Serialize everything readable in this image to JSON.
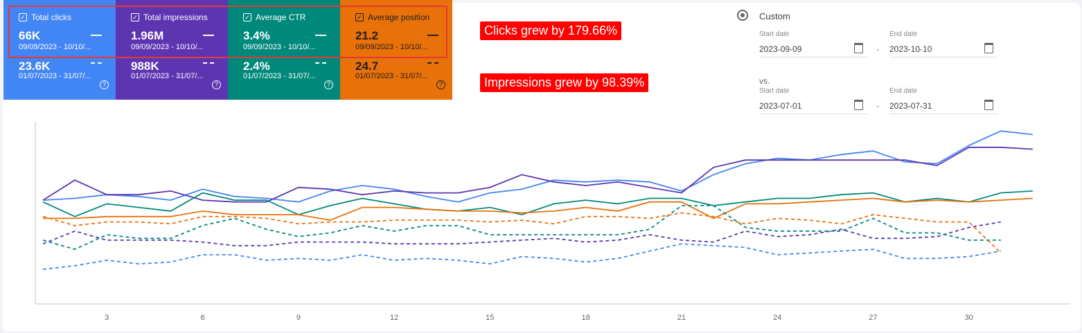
{
  "metrics": [
    {
      "label": "Total clicks",
      "value": "66K",
      "dates": "09/09/2023 - 10/10/...",
      "compare_value": "23.6K",
      "compare_dates": "01/07/2023 - 31/07/...",
      "bg": "#4285f4",
      "text_color": "#ffffff"
    },
    {
      "label": "Total impressions",
      "value": "1.96M",
      "dates": "09/09/2023 - 10/10/...",
      "compare_value": "988K",
      "compare_dates": "01/07/2023 - 31/07/...",
      "bg": "#5e35b1",
      "text_color": "#ffffff"
    },
    {
      "label": "Average CTR",
      "value": "3.4%",
      "dates": "09/09/2023 - 10/10/...",
      "compare_value": "2.4%",
      "compare_dates": "01/07/2023 - 31/07/...",
      "bg": "#00897b",
      "text_color": "#ffffff"
    },
    {
      "label": "Average position",
      "value": "21.2",
      "dates": "09/09/2023 - 10/10/...",
      "compare_value": "24.7",
      "compare_dates": "01/07/2023 - 31/07/...",
      "bg": "#e8710a",
      "text_color": "#1f1f1f"
    }
  ],
  "annotations": {
    "clicks": "Clicks grew by 179.66%",
    "impressions": "Impressions grew by 98.39%"
  },
  "date_range": {
    "option_label": "Custom",
    "start_label": "Start date",
    "end_label": "End date",
    "start_value": "2023-09-09",
    "end_value": "2023-10-10",
    "vs_label": "vs.",
    "compare_start_label": "Start date",
    "compare_end_label": "End date",
    "compare_start_value": "2023-07-01",
    "compare_end_value": "2023-07-31",
    "separator": "-"
  },
  "chart_data": {
    "type": "line",
    "x_ticks": [
      3,
      6,
      9,
      12,
      15,
      18,
      21,
      24,
      27,
      30
    ],
    "x_range": [
      1,
      33
    ],
    "y_range": [
      0,
      100
    ],
    "y_axis_note": "each series normalized to its own hidden axis; values are relative heights (0-100)",
    "series": [
      {
        "key": "clicks_current",
        "color": "#4285f4",
        "dashed": false,
        "x": [
          1,
          2,
          3,
          4,
          5,
          6,
          7,
          8,
          9,
          10,
          11,
          12,
          13,
          14,
          15,
          16,
          17,
          18,
          19,
          20,
          21,
          22,
          23,
          24,
          25,
          26,
          27,
          28,
          29,
          30,
          31,
          32
        ],
        "values": [
          57,
          58,
          60,
          59,
          57,
          63,
          59,
          58,
          56,
          62,
          65,
          63,
          59,
          56,
          61,
          63,
          68,
          67,
          68,
          67,
          62,
          71,
          77,
          80,
          79,
          82,
          84,
          78,
          77,
          87,
          95,
          93
        ]
      },
      {
        "key": "impressions_current",
        "color": "#5e35b1",
        "dashed": false,
        "x": [
          1,
          2,
          3,
          4,
          5,
          6,
          7,
          8,
          9,
          10,
          11,
          12,
          13,
          14,
          15,
          16,
          17,
          18,
          19,
          20,
          21,
          22,
          23,
          24,
          25,
          26,
          27,
          28,
          29,
          30,
          31,
          32
        ],
        "values": [
          57,
          68,
          60,
          60,
          62,
          57,
          56,
          56,
          64,
          63,
          60,
          62,
          61,
          61,
          64,
          71,
          67,
          65,
          67,
          64,
          61,
          75,
          79,
          79,
          79,
          79,
          79,
          79,
          76,
          86,
          86,
          85
        ]
      },
      {
        "key": "ctr_current",
        "color": "#00897b",
        "dashed": false,
        "x": [
          1,
          2,
          3,
          4,
          5,
          6,
          7,
          8,
          9,
          10,
          11,
          12,
          13,
          14,
          15,
          16,
          17,
          18,
          19,
          20,
          21,
          22,
          23,
          24,
          25,
          26,
          27,
          28,
          29,
          30,
          31,
          32
        ],
        "values": [
          56,
          48,
          55,
          53,
          51,
          61,
          57,
          57,
          49,
          54,
          58,
          55,
          52,
          51,
          53,
          49,
          55,
          57,
          55,
          58,
          58,
          54,
          56,
          58,
          58,
          60,
          61,
          56,
          58,
          56,
          61,
          62
        ]
      },
      {
        "key": "position_current",
        "color": "#e8710a",
        "dashed": false,
        "x": [
          1,
          2,
          3,
          4,
          5,
          6,
          7,
          8,
          9,
          10,
          11,
          12,
          13,
          14,
          15,
          16,
          17,
          18,
          19,
          20,
          21,
          22,
          23,
          24,
          25,
          26,
          27,
          28,
          29,
          30,
          31,
          32
        ],
        "values": [
          47,
          47,
          48,
          48,
          48,
          51,
          49,
          49,
          49,
          46,
          53,
          53,
          52,
          51,
          51,
          50,
          51,
          53,
          51,
          56,
          56,
          47,
          55,
          55,
          56,
          57,
          58,
          56,
          57,
          56,
          57,
          58
        ]
      },
      {
        "key": "clicks_compare",
        "color": "#4285f4",
        "dashed": true,
        "x": [
          1,
          2,
          3,
          4,
          5,
          6,
          7,
          8,
          9,
          10,
          11,
          12,
          13,
          14,
          15,
          16,
          17,
          18,
          19,
          20,
          21,
          22,
          23,
          24,
          25,
          26,
          27,
          28,
          29,
          30,
          31
        ],
        "values": [
          19,
          21,
          24,
          22,
          23,
          27,
          27,
          24,
          25,
          24,
          27,
          24,
          25,
          24,
          22,
          26,
          25,
          23,
          25,
          29,
          33,
          32,
          31,
          27,
          28,
          29,
          30,
          25,
          25,
          26,
          29
        ]
      },
      {
        "key": "impressions_compare",
        "color": "#5e35b1",
        "dashed": true,
        "x": [
          1,
          2,
          3,
          4,
          5,
          6,
          7,
          8,
          9,
          10,
          11,
          12,
          13,
          14,
          15,
          16,
          17,
          18,
          19,
          20,
          21,
          22,
          23,
          24,
          25,
          26,
          27,
          28,
          29,
          30,
          31
        ],
        "values": [
          33,
          40,
          35,
          35,
          35,
          34,
          32,
          32,
          34,
          34,
          34,
          33,
          33,
          33,
          34,
          35,
          36,
          34,
          35,
          38,
          35,
          34,
          40,
          37,
          38,
          41,
          36,
          36,
          37,
          42,
          45
        ]
      },
      {
        "key": "ctr_compare",
        "color": "#00897b",
        "dashed": true,
        "x": [
          1,
          2,
          3,
          4,
          5,
          6,
          7,
          8,
          9,
          10,
          11,
          12,
          13,
          14,
          15,
          16,
          17,
          18,
          19,
          20,
          21,
          22,
          23,
          24,
          25,
          26,
          27,
          28,
          29,
          30,
          31
        ],
        "values": [
          35,
          30,
          38,
          36,
          36,
          43,
          47,
          41,
          37,
          39,
          43,
          40,
          43,
          43,
          38,
          38,
          38,
          38,
          38,
          41,
          54,
          54,
          42,
          40,
          40,
          40,
          47,
          39,
          39,
          35,
          35
        ]
      },
      {
        "key": "position_compare",
        "color": "#e8710a",
        "dashed": true,
        "x": [
          1,
          2,
          3,
          4,
          5,
          6,
          7,
          8,
          9,
          10,
          11,
          12,
          13,
          14,
          15,
          16,
          17,
          18,
          19,
          20,
          21,
          22,
          23,
          24,
          25,
          26,
          27,
          28,
          29,
          30,
          31
        ],
        "values": [
          48,
          43,
          45,
          45,
          44,
          48,
          48,
          47,
          44,
          45,
          45,
          46,
          46,
          46,
          45,
          46,
          44,
          48,
          48,
          47,
          50,
          48,
          44,
          47,
          46,
          44,
          49,
          47,
          45,
          45,
          28
        ]
      }
    ]
  }
}
